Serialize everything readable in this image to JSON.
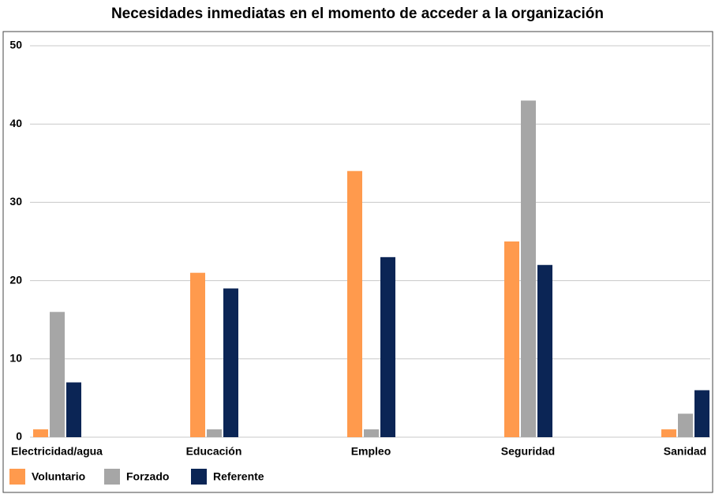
{
  "chart_data": {
    "type": "bar",
    "title": "Necesidades inmediatas en el momento de acceder a la organización",
    "categories": [
      "Electricidad/agua",
      "Educación",
      "Empleo",
      "Seguridad",
      "Sanidad"
    ],
    "series": [
      {
        "name": "Voluntario",
        "color": "#ff9a4d",
        "values": [
          1,
          21,
          34,
          25,
          1
        ]
      },
      {
        "name": "Forzado",
        "color": "#a6a6a6",
        "values": [
          16,
          1,
          1,
          43,
          3
        ]
      },
      {
        "name": "Referente",
        "color": "#0b2555",
        "values": [
          7,
          19,
          23,
          22,
          6
        ]
      }
    ],
    "ylim": [
      0,
      50
    ],
    "yticks": [
      0,
      10,
      20,
      30,
      40,
      50
    ],
    "grid": true,
    "legend": "bottom-left"
  }
}
